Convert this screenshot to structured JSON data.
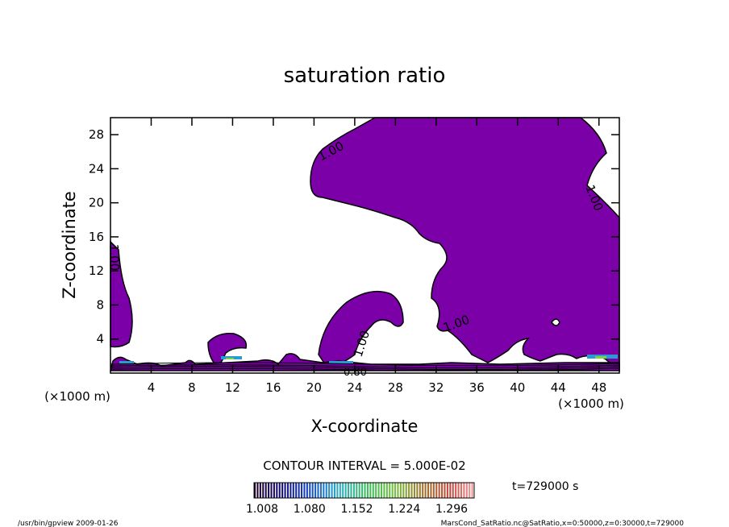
{
  "chart_data": {
    "type": "contour",
    "title": "saturation ratio",
    "xlabel": "X-coordinate",
    "ylabel": "Z-coordinate",
    "x_unit_label": "(×1000 m)",
    "y_unit_label": "(×1000 m)",
    "xlim": [
      0,
      50
    ],
    "ylim": [
      0,
      30
    ],
    "x_ticks": [
      4,
      8,
      12,
      16,
      20,
      24,
      28,
      32,
      36,
      40,
      44,
      48
    ],
    "y_ticks": [
      4,
      8,
      12,
      16,
      20,
      24,
      28
    ],
    "contour_labels": [
      "1.00",
      "1.00",
      "1.00",
      "1.00",
      "1.00",
      "0.80"
    ],
    "contour_interval_text": "CONTOUR INTERVAL = 5.000E-02",
    "colorbar": {
      "ticks": [
        "1.008",
        "1.080",
        "1.152",
        "1.224",
        "1.296"
      ],
      "min": 1.008,
      "max": 1.296
    },
    "time_label": "t=729000 s",
    "fill_color": "#7b00a8"
  },
  "footer": {
    "left": "/usr/bin/gpview   2009-01-26",
    "right": "MarsCond_SatRatio.nc@SatRatio,x=0:50000,z=0:30000,t=729000"
  }
}
